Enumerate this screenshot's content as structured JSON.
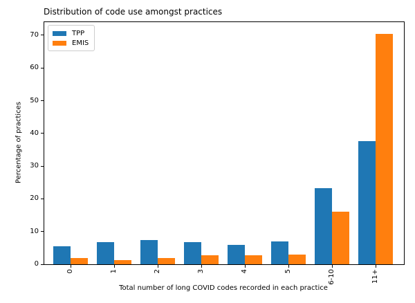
{
  "figure": {
    "title": "Distribution of code use amongst practices"
  },
  "chart_data": {
    "type": "bar",
    "title": "Distribution of code use amongst practices",
    "xlabel": "Total number of long COVID codes recorded in each practice",
    "ylabel": "Percentage of practices",
    "categories": [
      "0",
      "1",
      "2",
      "3",
      "4",
      "5",
      "6-10",
      "11+"
    ],
    "series": [
      {
        "name": "TPP",
        "color": "#1f77b4",
        "values": [
          5.4,
          6.8,
          7.5,
          6.8,
          6.0,
          7.0,
          23.2,
          37.6
        ]
      },
      {
        "name": "EMIS",
        "color": "#ff7f0e",
        "values": [
          2.0,
          1.3,
          2.0,
          2.8,
          2.8,
          3.0,
          16.0,
          70.5
        ]
      }
    ],
    "yticks": [
      0,
      10,
      20,
      30,
      40,
      50,
      60,
      70
    ],
    "ylim": [
      0,
      74
    ],
    "grid": false,
    "legend_position": "upper left"
  }
}
